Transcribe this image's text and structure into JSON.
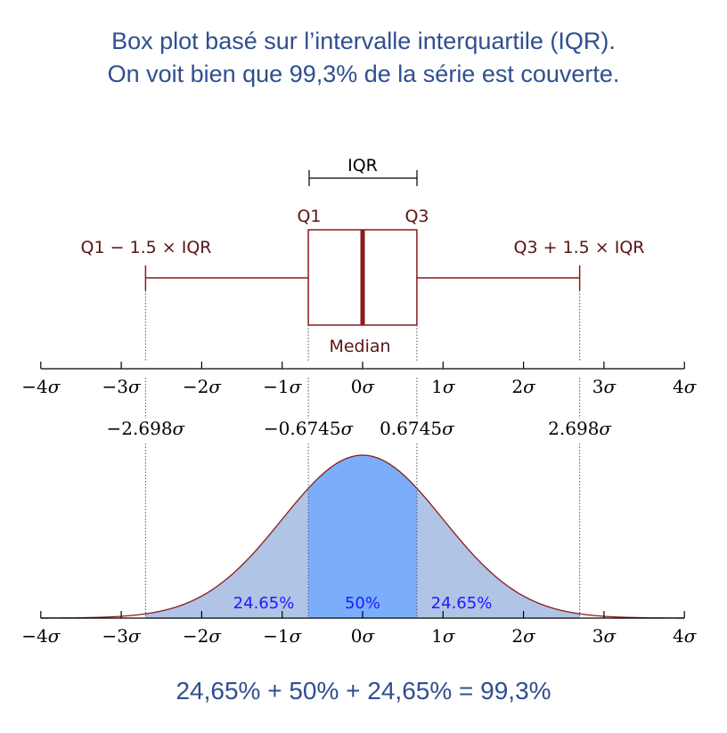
{
  "title": {
    "line1": "Box plot basé sur l’intervalle interquartile (IQR).",
    "line2": "On voit bien que 99,3% de la série est couverte."
  },
  "boxplot": {
    "iqr_label": "IQR",
    "q1_label": "Q1",
    "q3_label": "Q3",
    "lower_whisker_label": "Q1 − 1.5 × IQR",
    "upper_whisker_label": "Q3 + 1.5 × IQR",
    "median_label": "Median",
    "q1_sigma": -0.6745,
    "median_sigma": 0,
    "q3_sigma": 0.6745,
    "lower_whisker_sigma": -2.698,
    "upper_whisker_sigma": 2.698
  },
  "axis": {
    "ticks": [
      {
        "num": "−4",
        "sigma": -4
      },
      {
        "num": "−3",
        "sigma": -3
      },
      {
        "num": "−2",
        "sigma": -2
      },
      {
        "num": "−1",
        "sigma": -1
      },
      {
        "num": "0",
        "sigma": 0
      },
      {
        "num": "1",
        "sigma": 1
      },
      {
        "num": "2",
        "sigma": 2
      },
      {
        "num": "3",
        "sigma": 3
      },
      {
        "num": "4",
        "sigma": 4
      }
    ],
    "sigma_symbol": "σ"
  },
  "markers": [
    {
      "num": "−2.698",
      "sigma": -2.698
    },
    {
      "num": "−0.6745",
      "sigma": -0.6745
    },
    {
      "num": "0.6745",
      "sigma": 0.6745
    },
    {
      "num": "2.698",
      "sigma": 2.698
    }
  ],
  "distribution": {
    "left_pct": "24.65%",
    "mid_pct": "50%",
    "right_pct": "24.65%",
    "colors": {
      "tail": "#7fa5d9",
      "center": "#7aaefa",
      "outline": "#8b1a1a",
      "box": "#8b1a1a",
      "text": "#1a1aff"
    }
  },
  "footer": "24,65% + 50% + 24,65% = 99,3%"
}
